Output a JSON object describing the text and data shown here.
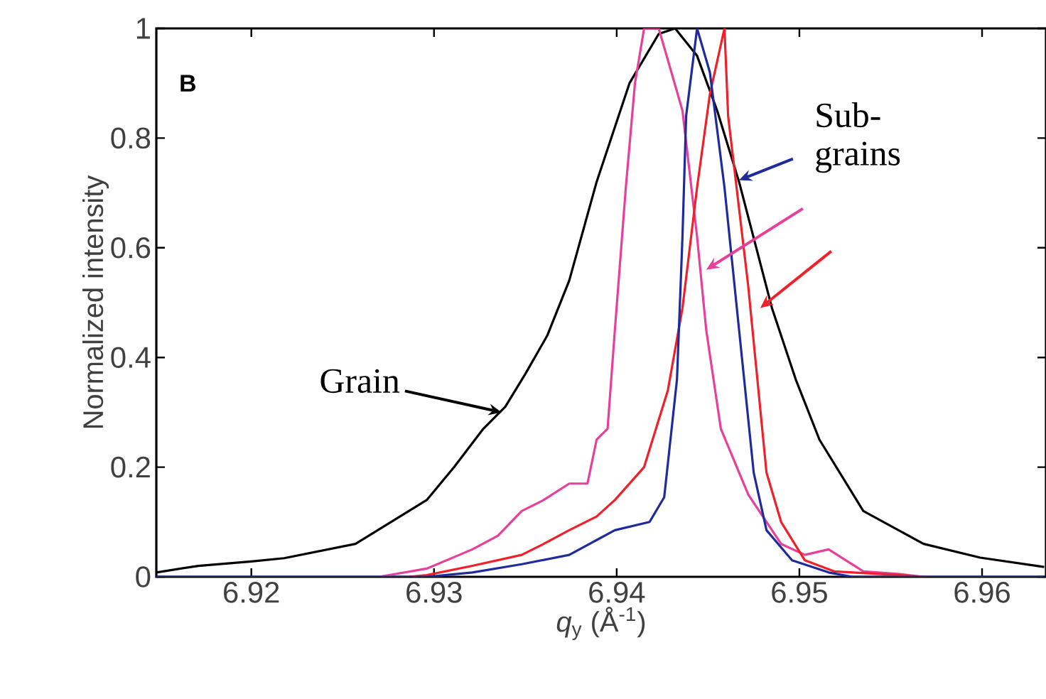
{
  "chart_data": {
    "type": "line",
    "xlabel": "*q*$_{y}$ (Å$^{-1}$)",
    "ylabel": "Normalized intensity",
    "xlim": [
      6.9148,
      6.9635
    ],
    "ylim": [
      0,
      1
    ],
    "xticks": [
      6.92,
      6.93,
      6.94,
      6.95,
      6.96
    ],
    "yticks": [
      0,
      0.2,
      0.4,
      0.6,
      0.8,
      1
    ],
    "series": [
      {
        "color": "#000000",
        "x": [
          6.9148,
          6.9171,
          6.92,
          6.9218,
          6.9257,
          6.9296,
          6.9311,
          6.9327,
          6.9339,
          6.935,
          6.9362,
          6.9374,
          6.9389,
          6.9407,
          6.9423,
          6.9432,
          6.9444,
          6.9455,
          6.9467,
          6.9485,
          6.9498,
          6.9511,
          6.9535,
          6.9568,
          6.9599,
          6.9634
        ],
        "values": [
          0.008,
          0.02,
          0.028,
          0.034,
          0.06,
          0.14,
          0.2,
          0.27,
          0.31,
          0.37,
          0.44,
          0.54,
          0.72,
          0.9,
          0.99,
          1.0,
          0.95,
          0.85,
          0.72,
          0.49,
          0.36,
          0.25,
          0.12,
          0.06,
          0.035,
          0.018
        ]
      },
      {
        "color": "#e8409a",
        "x": [
          6.927,
          6.9296,
          6.9321,
          6.9335,
          6.9348,
          6.936,
          6.9374,
          6.9384,
          6.9389,
          6.9395,
          6.9399,
          6.9405,
          6.941,
          6.9415,
          6.9423,
          6.9436,
          6.9444,
          6.9449,
          6.9457,
          6.9472,
          6.949,
          6.9503,
          6.9516,
          6.9535,
          6.9555,
          6.9568
        ],
        "values": [
          0,
          0.015,
          0.05,
          0.075,
          0.12,
          0.14,
          0.17,
          0.17,
          0.25,
          0.27,
          0.45,
          0.71,
          0.9,
          1.0,
          1.0,
          0.85,
          0.62,
          0.45,
          0.27,
          0.15,
          0.06,
          0.04,
          0.05,
          0.01,
          0.005,
          0
        ]
      },
      {
        "color": "#f0202a",
        "x": [
          6.9286,
          6.9296,
          6.9321,
          6.9348,
          6.936,
          6.9374,
          6.9389,
          6.9399,
          6.9415,
          6.9428,
          6.9436,
          6.9444,
          6.9451,
          6.9459,
          6.9461,
          6.9472,
          6.9477,
          6.9482,
          6.949,
          6.9503,
          6.9519,
          6.9555,
          6.9568
        ],
        "values": [
          0,
          0.003,
          0.02,
          0.04,
          0.06,
          0.085,
          0.11,
          0.14,
          0.2,
          0.34,
          0.49,
          0.71,
          0.88,
          1.0,
          0.84,
          0.53,
          0.36,
          0.19,
          0.1,
          0.03,
          0.01,
          0.003,
          0
        ]
      },
      {
        "color": "#1f2a9e",
        "x": [
          6.9148,
          6.9296,
          6.9321,
          6.9348,
          6.9374,
          6.9389,
          6.9399,
          6.9418,
          6.9426,
          6.9433,
          6.9436,
          6.9438,
          6.9444,
          6.9451,
          6.9459,
          6.9467,
          6.9475,
          6.9482,
          6.9496,
          6.9516,
          6.9529,
          6.9634
        ],
        "values": [
          0,
          0,
          0.008,
          0.023,
          0.04,
          0.067,
          0.085,
          0.1,
          0.145,
          0.36,
          0.62,
          0.84,
          1.0,
          0.92,
          0.71,
          0.45,
          0.19,
          0.085,
          0.03,
          0.008,
          0,
          0
        ]
      }
    ],
    "annotations": [
      "B",
      {
        "text": "Grain",
        "x": 6.9337,
        "y": 0.3
      },
      {
        "text": "Sub- grains",
        "x": 6.9449,
        "y": 0.56
      }
    ]
  }
}
